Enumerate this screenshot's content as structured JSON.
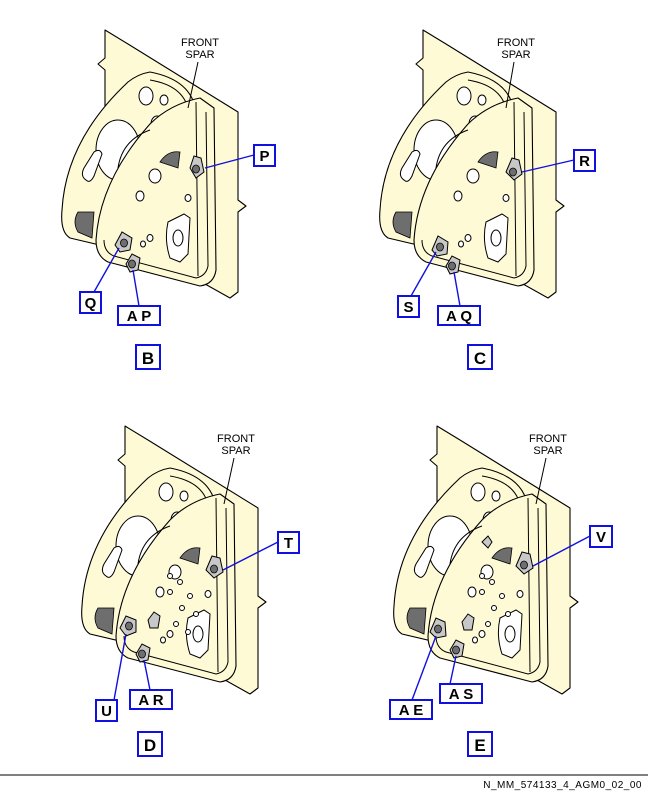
{
  "panels": [
    {
      "id": "B",
      "spar_label_line1": "FRONT",
      "spar_label_line2": "SPAR",
      "view_label": "B",
      "callouts": [
        {
          "text": "P"
        },
        {
          "text": "Q"
        },
        {
          "text": "A P"
        }
      ]
    },
    {
      "id": "C",
      "spar_label_line1": "FRONT",
      "spar_label_line2": "SPAR",
      "view_label": "C",
      "callouts": [
        {
          "text": "R"
        },
        {
          "text": "S"
        },
        {
          "text": "A Q"
        }
      ]
    },
    {
      "id": "D",
      "spar_label_line1": "FRONT",
      "spar_label_line2": "SPAR",
      "view_label": "D",
      "callouts": [
        {
          "text": "T"
        },
        {
          "text": "U"
        },
        {
          "text": "A R"
        }
      ]
    },
    {
      "id": "E",
      "spar_label_line1": "FRONT",
      "spar_label_line2": "SPAR",
      "view_label": "E",
      "callouts": [
        {
          "text": "V"
        },
        {
          "text": "A E"
        },
        {
          "text": "A S"
        }
      ]
    }
  ],
  "reference_code": "N_MM_574133_4_AGM0_02_00",
  "colors": {
    "plate_fill": "#fffad6",
    "callout_border": "#1010e0",
    "line": "#000000"
  }
}
